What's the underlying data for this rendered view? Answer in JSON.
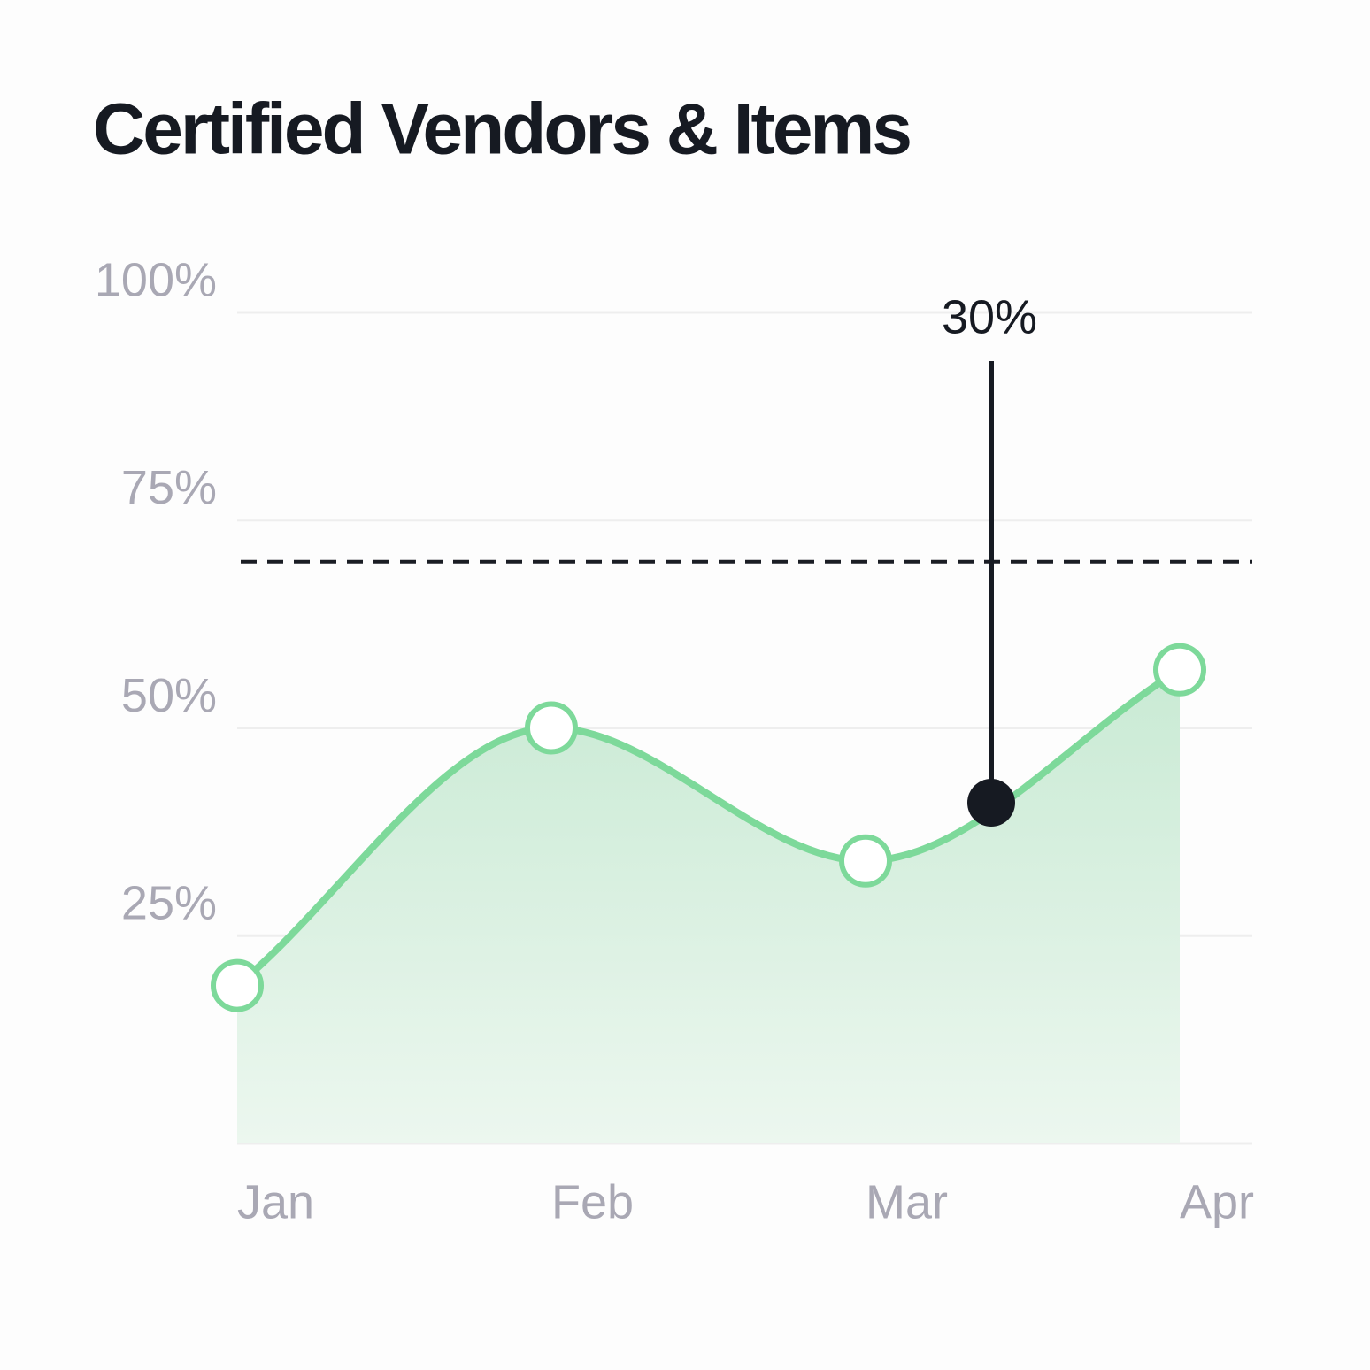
{
  "chart_data": {
    "type": "area",
    "title": "Certified Vendors & Items",
    "categories": [
      "Jan",
      "Feb",
      "Mar",
      "Apr"
    ],
    "series": [
      {
        "color": "#7dd99a",
        "values": [
          19,
          50,
          34,
          57
        ]
      }
    ],
    "ylim": [
      0,
      100
    ],
    "yticks": [
      {
        "value": 25,
        "label": "25%"
      },
      {
        "value": 50,
        "label": "50%"
      },
      {
        "value": 75,
        "label": "75%"
      },
      {
        "value": 100,
        "label": "100%"
      }
    ],
    "grid": true,
    "reference_line": {
      "y": 70,
      "color": "#1a1d24",
      "dashed": true
    },
    "annotation": {
      "label": "30%",
      "x": 2.4,
      "y": 41,
      "color": "#161a22"
    }
  }
}
